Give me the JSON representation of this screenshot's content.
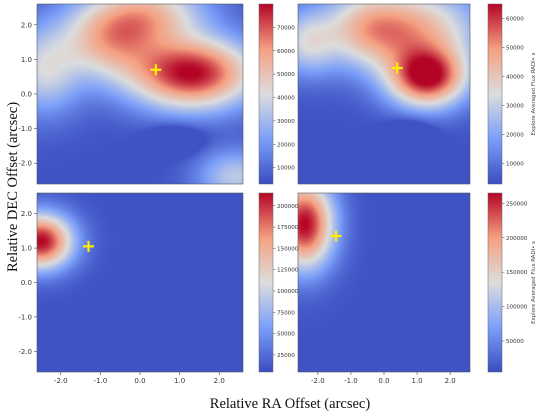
{
  "figure": {
    "xlabel": "Relative RA Offset (arcsec)",
    "ylabel": "Relative DEC Offset (arcsec)"
  },
  "chart_data": [
    {
      "type": "heatmap",
      "panel": "top-left",
      "xlim": [
        -2.6,
        2.6
      ],
      "ylim": [
        -2.6,
        2.6
      ],
      "y_ticks": [
        "2.0",
        "1.0",
        "0.0",
        "-1.0",
        "-2.0"
      ],
      "x_ticks": [],
      "marker": {
        "x": 0.4,
        "y": 0.7
      },
      "colorbar": {
        "min": 3000,
        "max": 80000,
        "ticks": [
          "70000",
          "60000",
          "50000",
          "40000",
          "30000",
          "20000",
          "10000"
        ],
        "label": ""
      },
      "peaks": [
        {
          "x": 1.3,
          "y": 0.6,
          "amp": 1.0,
          "sx": 1.0,
          "sy": 0.65
        },
        {
          "x": -0.7,
          "y": 1.6,
          "amp": 0.6,
          "sx": 0.85,
          "sy": 0.75
        },
        {
          "x": 0.3,
          "y": 2.3,
          "amp": 0.45,
          "sx": 0.9,
          "sy": 0.6
        },
        {
          "x": -2.4,
          "y": 0.7,
          "amp": 0.35,
          "sx": 0.6,
          "sy": 0.8
        },
        {
          "x": 2.4,
          "y": -2.4,
          "amp": 0.3,
          "sx": 0.6,
          "sy": 0.5
        }
      ],
      "dips": [
        {
          "x": 0.9,
          "y": -1.3,
          "amp": 0.12,
          "sx": 0.45,
          "sy": 0.3
        }
      ]
    },
    {
      "type": "heatmap",
      "panel": "top-right",
      "xlim": [
        -2.6,
        2.6
      ],
      "ylim": [
        -2.6,
        2.6
      ],
      "y_ticks": [],
      "x_ticks": [],
      "marker": {
        "x": 0.4,
        "y": 0.75
      },
      "colorbar": {
        "min": 3000,
        "max": 65000,
        "ticks": [
          "60000",
          "50000",
          "40000",
          "30000",
          "20000",
          "10000"
        ],
        "label": "Explore Averaged Flux RADI• s"
      },
      "peaks": [
        {
          "x": 1.3,
          "y": 0.5,
          "amp": 1.0,
          "sx": 0.75,
          "sy": 0.55
        },
        {
          "x": 1.0,
          "y": 1.8,
          "amp": 0.55,
          "sx": 1.2,
          "sy": 0.8
        },
        {
          "x": -0.5,
          "y": 1.9,
          "amp": 0.45,
          "sx": 0.9,
          "sy": 0.7
        },
        {
          "x": -2.3,
          "y": 1.5,
          "amp": 0.35,
          "sx": 0.6,
          "sy": 0.6
        }
      ],
      "dips": [
        {
          "x": 0.8,
          "y": -1.2,
          "amp": 0.12,
          "sx": 0.45,
          "sy": 0.35
        }
      ]
    },
    {
      "type": "heatmap",
      "panel": "bottom-left",
      "xlim": [
        -2.6,
        2.6
      ],
      "ylim": [
        -2.6,
        2.6
      ],
      "y_ticks": [
        "2.0",
        "1.0",
        "0.0",
        "-1.0",
        "-2.0"
      ],
      "x_ticks": [
        "-2.0",
        "-1.0",
        "0.0",
        "1.0",
        "2.0"
      ],
      "marker": {
        "x": -1.3,
        "y": 1.05
      },
      "colorbar": {
        "min": 5000,
        "max": 215000,
        "ticks": [
          "200000",
          "175000",
          "150000",
          "125000",
          "100000",
          "75000",
          "50000",
          "25000"
        ],
        "label": ""
      },
      "peaks": [
        {
          "x": -2.5,
          "y": 1.2,
          "amp": 1.0,
          "sx": 0.5,
          "sy": 0.5
        }
      ],
      "dips": []
    },
    {
      "type": "heatmap",
      "panel": "bottom-right",
      "xlim": [
        -2.6,
        2.6
      ],
      "ylim": [
        -2.6,
        2.6
      ],
      "y_ticks": [],
      "x_ticks": [
        "-2.0",
        "-1.0",
        "0.0",
        "1.0",
        "2.0"
      ],
      "marker": {
        "x": -1.45,
        "y": 1.35
      },
      "colorbar": {
        "min": 5000,
        "max": 265000,
        "ticks": [
          "250000",
          "200000",
          "150000",
          "100000",
          "50000"
        ],
        "label": "Explore Averaged Flux RADI• s"
      },
      "peaks": [
        {
          "x": -2.4,
          "y": 1.7,
          "amp": 1.0,
          "sx": 0.55,
          "sy": 0.8
        }
      ],
      "dips": []
    }
  ],
  "colors": {
    "marker": "#ffee00",
    "cmap_low": "#3a4cc0",
    "cmap_mid": "#dcdddd",
    "cmap_high": "#b40426"
  }
}
